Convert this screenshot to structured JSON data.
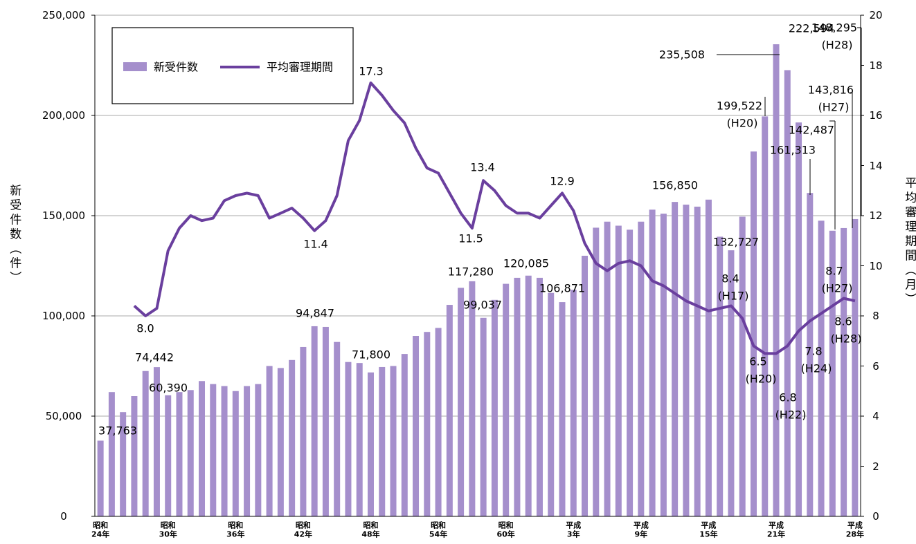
{
  "chart_data": {
    "type": "bar_line",
    "y_label": "新受件数（件）",
    "y2_label": "平均審理期間（月）",
    "categories": [
      "昭和\n24年",
      null,
      null,
      null,
      null,
      null,
      "昭和\n30年",
      null,
      null,
      null,
      null,
      null,
      "昭和\n36年",
      null,
      null,
      null,
      null,
      null,
      "昭和\n42年",
      null,
      null,
      null,
      null,
      null,
      "昭和\n48年",
      null,
      null,
      null,
      null,
      null,
      "昭和\n54年",
      null,
      null,
      null,
      null,
      null,
      "昭和\n60年",
      null,
      null,
      null,
      null,
      null,
      "平成\n3年",
      null,
      null,
      null,
      null,
      null,
      "平成\n9年",
      null,
      null,
      null,
      null,
      null,
      "平成\n15年",
      null,
      null,
      null,
      null,
      null,
      "平成\n21年",
      null,
      null,
      null,
      null,
      null,
      null,
      "平成\n28年"
    ],
    "ylim": [
      0,
      250000
    ],
    "yticks": [
      0,
      {
        "value": 50000,
        "label": "50,000"
      },
      {
        "value": 100000,
        "label": "100,000"
      },
      {
        "value": 150000,
        "label": "150,000"
      },
      {
        "value": 200000,
        "label": "200,000"
      },
      {
        "value": 250000,
        "label": "250,000"
      }
    ],
    "y2lim": [
      0,
      20
    ],
    "y2ticks": [
      0,
      2,
      4,
      6,
      8,
      10,
      12,
      14,
      16,
      18,
      20
    ],
    "grid": true,
    "legend": "top-left",
    "series": [
      {
        "name": "新受件数",
        "color": "#a58fcc",
        "values": [
          37763,
          62000,
          52000,
          60000,
          72500,
          74442,
          60390,
          62000,
          63000,
          67500,
          66000,
          65000,
          62500,
          65000,
          66000,
          75000,
          74000,
          78000,
          84500,
          94847,
          94500,
          87000,
          77000,
          76500,
          71800,
          74500,
          75000,
          81000,
          90000,
          92000,
          94000,
          105500,
          114000,
          117280,
          99037,
          108000,
          116000,
          119000,
          120085,
          119000,
          111500,
          106871,
          113000,
          130000,
          144000,
          147000,
          145000,
          143000,
          147000,
          153000,
          151000,
          156850,
          155500,
          154500,
          158000,
          139500,
          132727,
          149500,
          182000,
          199522,
          235508,
          222594,
          196500,
          161313,
          147500,
          142487,
          143816,
          148295
        ],
        "value_labels": [
          "37,763",
          null,
          null,
          null,
          null,
          "74,442",
          "60,390",
          null,
          null,
          null,
          null,
          null,
          null,
          null,
          null,
          null,
          null,
          null,
          null,
          "94,847",
          null,
          null,
          null,
          null,
          "71,800",
          null,
          null,
          null,
          null,
          null,
          null,
          null,
          null,
          "117,280",
          "99,037",
          null,
          null,
          null,
          "120,085",
          null,
          null,
          "106,871",
          null,
          null,
          null,
          null,
          null,
          null,
          null,
          null,
          null,
          "156,850",
          null,
          null,
          null,
          null,
          "132,727",
          null,
          null,
          "199,522",
          "235,508",
          "222,594",
          null,
          "161,313",
          null,
          "142,487",
          "143,816",
          "148,295"
        ],
        "value_label_notes": [
          null,
          null,
          null,
          null,
          null,
          null,
          null,
          null,
          null,
          null,
          null,
          null,
          null,
          null,
          null,
          null,
          null,
          null,
          null,
          null,
          null,
          null,
          null,
          null,
          null,
          null,
          null,
          null,
          null,
          null,
          null,
          null,
          null,
          null,
          null,
          null,
          null,
          null,
          null,
          null,
          null,
          null,
          null,
          null,
          null,
          null,
          null,
          null,
          null,
          null,
          null,
          null,
          null,
          null,
          null,
          null,
          null,
          null,
          null,
          "(H20)",
          null,
          null,
          null,
          null,
          null,
          null,
          "(H27)",
          "(H28)"
        ]
      },
      {
        "name": "平均審理期間",
        "color": "#6a3f9e",
        "axis": "y2",
        "values": [
          null,
          null,
          null,
          8.4,
          8.0,
          8.3,
          10.6,
          11.5,
          12.0,
          11.8,
          11.9,
          12.6,
          12.8,
          12.9,
          12.8,
          11.9,
          12.1,
          12.3,
          11.9,
          11.4,
          11.8,
          12.8,
          15.0,
          15.8,
          17.3,
          16.8,
          16.2,
          15.7,
          14.7,
          13.9,
          13.7,
          12.9,
          12.1,
          11.5,
          13.4,
          13.0,
          12.4,
          12.1,
          12.1,
          11.9,
          12.4,
          12.9,
          12.2,
          10.9,
          10.1,
          9.8,
          10.1,
          10.2,
          10.0,
          9.4,
          9.2,
          8.9,
          8.6,
          8.4,
          8.2,
          8.3,
          8.4,
          7.9,
          6.8,
          6.5,
          6.5,
          6.8,
          7.4,
          7.8,
          8.1,
          8.4,
          8.7,
          8.6
        ],
        "value_labels": [
          null,
          null,
          null,
          null,
          "8.0",
          null,
          null,
          null,
          null,
          null,
          null,
          null,
          null,
          null,
          null,
          null,
          null,
          null,
          null,
          "11.4",
          null,
          null,
          null,
          null,
          "17.3",
          null,
          null,
          null,
          null,
          null,
          null,
          null,
          null,
          "11.5",
          "13.4",
          null,
          null,
          null,
          null,
          null,
          null,
          "12.9",
          null,
          null,
          null,
          null,
          null,
          null,
          null,
          null,
          null,
          null,
          null,
          null,
          null,
          null,
          "8.4",
          null,
          null,
          "6.5",
          null,
          "6.8",
          null,
          "7.8",
          null,
          null,
          "8.7",
          "8.6"
        ],
        "value_label_notes": [
          null,
          null,
          null,
          null,
          null,
          null,
          null,
          null,
          null,
          null,
          null,
          null,
          null,
          null,
          null,
          null,
          null,
          null,
          null,
          null,
          null,
          null,
          null,
          null,
          null,
          null,
          null,
          null,
          null,
          null,
          null,
          null,
          null,
          null,
          null,
          null,
          null,
          null,
          null,
          null,
          null,
          null,
          null,
          null,
          null,
          null,
          null,
          null,
          null,
          null,
          null,
          null,
          null,
          null,
          null,
          null,
          "(H17)",
          null,
          null,
          "(H20)",
          null,
          "(H22)",
          null,
          "(H24)",
          null,
          null,
          "(H27)",
          "(H28)"
        ]
      }
    ]
  }
}
